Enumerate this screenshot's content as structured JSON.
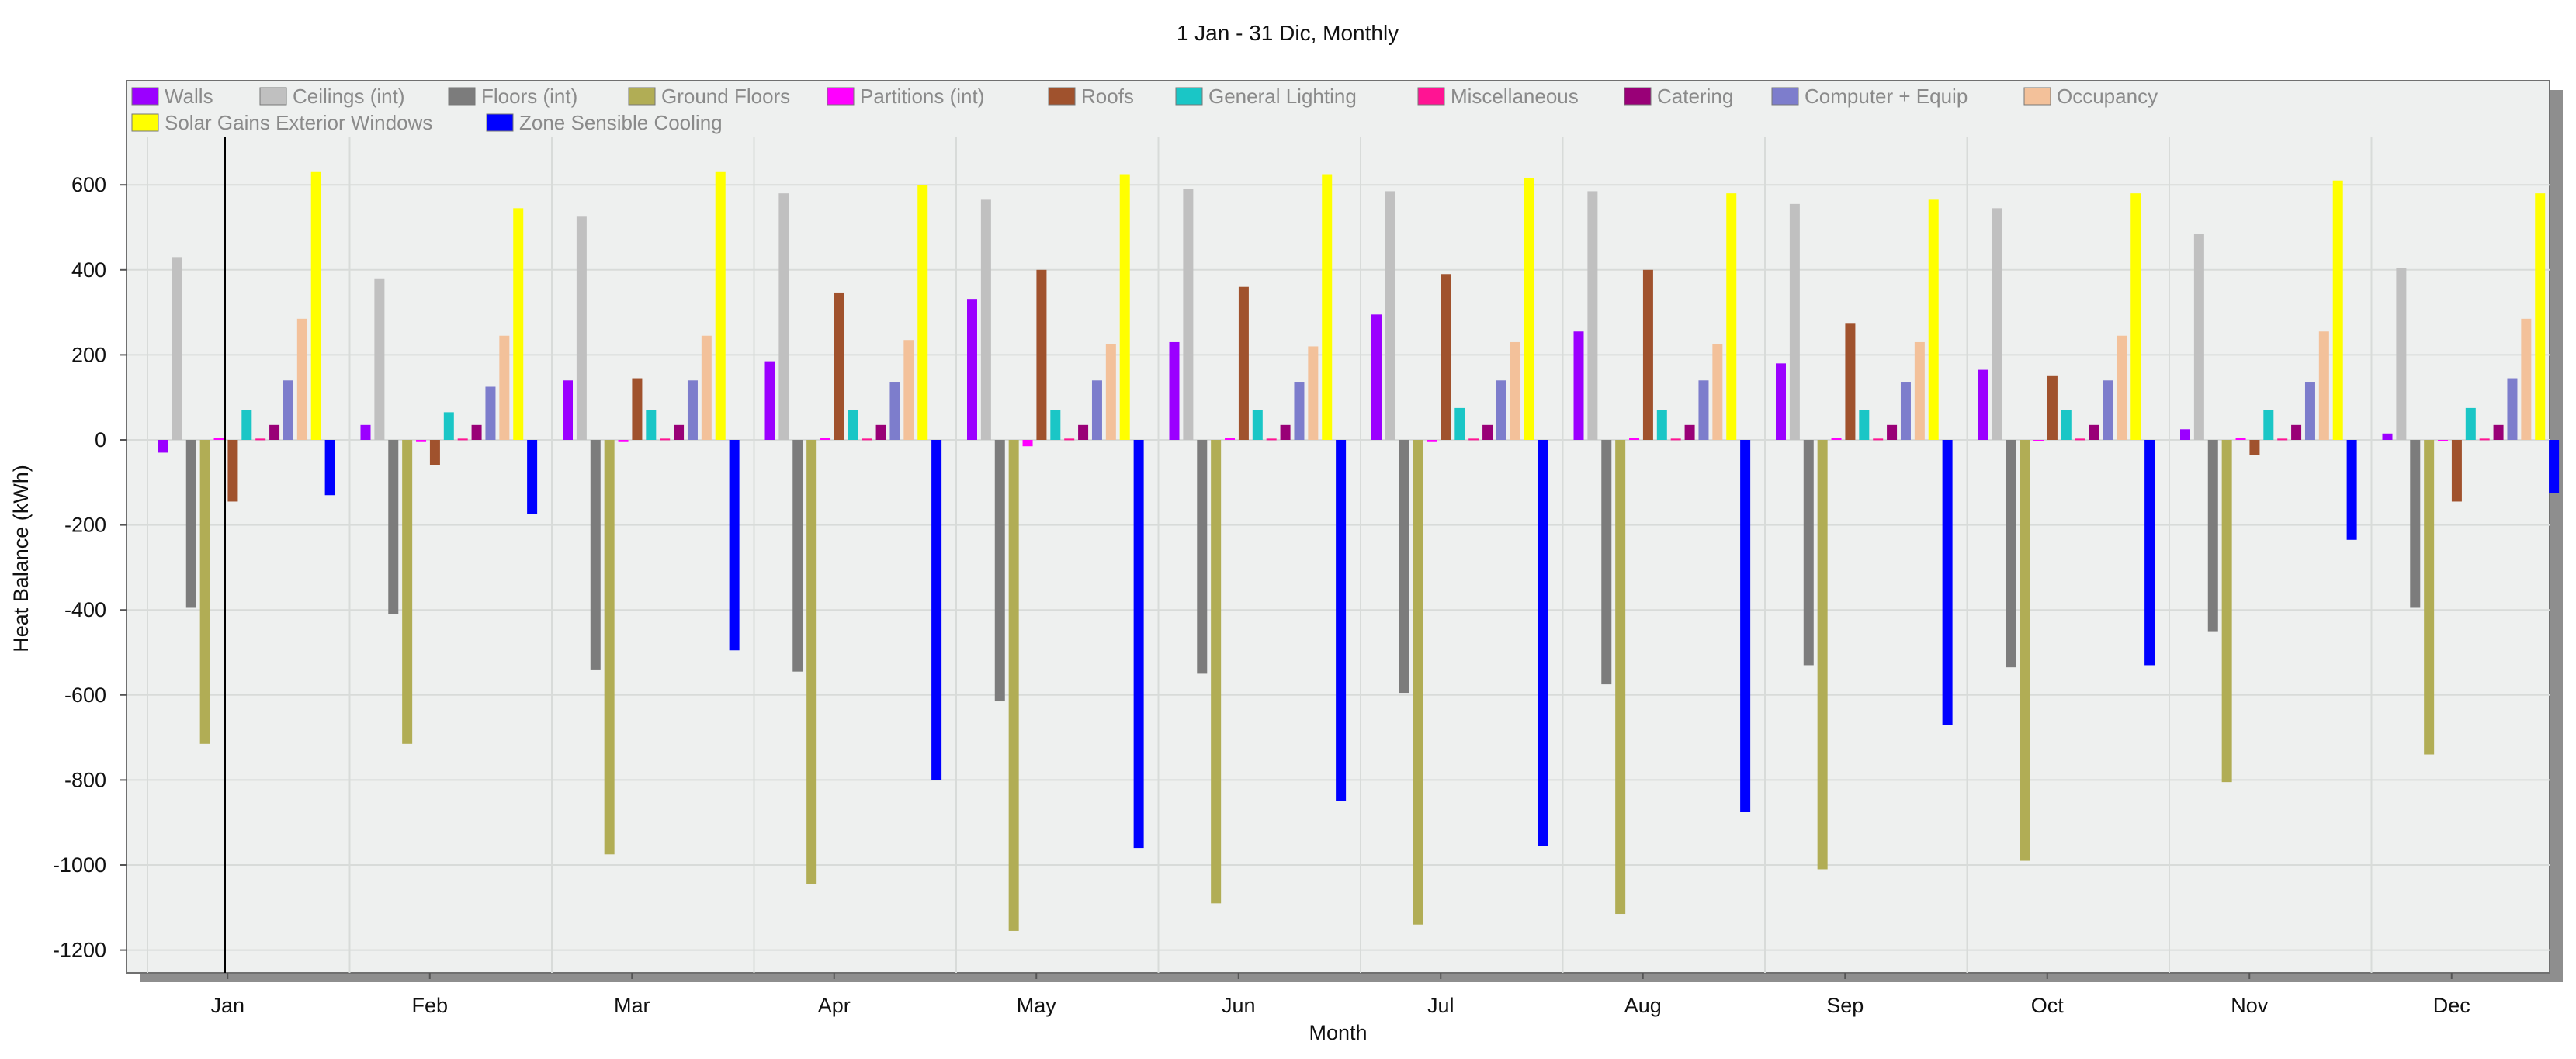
{
  "chart_data": {
    "type": "bar",
    "title": "1 Jan - 31 Dic, Monthly",
    "xlabel": "Month",
    "ylabel": "Heat Balance (kWh)",
    "ylim": [
      -1250,
      750
    ],
    "yticks": [
      600,
      400,
      200,
      0,
      -200,
      -400,
      -600,
      -800,
      -1000,
      -1200
    ],
    "grid": true,
    "legend_position": "top-left",
    "categories": [
      "Jan",
      "Feb",
      "Mar",
      "Apr",
      "May",
      "Jun",
      "Jul",
      "Aug",
      "Sep",
      "Oct",
      "Nov",
      "Dec"
    ],
    "series": [
      {
        "name": "Walls",
        "color": "#9b00ff",
        "values": [
          -30,
          35,
          140,
          185,
          330,
          230,
          295,
          255,
          180,
          165,
          25,
          15
        ]
      },
      {
        "name": "Ceilings (int)",
        "color": "#c0c0c0",
        "values": [
          430,
          380,
          525,
          580,
          565,
          590,
          585,
          585,
          555,
          545,
          485,
          405
        ]
      },
      {
        "name": "Floors (int)",
        "color": "#7c7c7c",
        "values": [
          -395,
          -410,
          -540,
          -545,
          -615,
          -550,
          -595,
          -575,
          -530,
          -535,
          -450,
          -395
        ]
      },
      {
        "name": "Ground Floors",
        "color": "#b1ad55",
        "values": [
          -715,
          -715,
          -975,
          -1045,
          -1155,
          -1090,
          -1140,
          -1115,
          -1010,
          -990,
          -805,
          -740
        ]
      },
      {
        "name": "Partitions (int)",
        "color": "#ff00ff",
        "values": [
          5,
          -5,
          -5,
          5,
          -15,
          5,
          -5,
          5,
          5,
          0,
          5,
          0
        ]
      },
      {
        "name": "Roofs",
        "color": "#a0522d",
        "values": [
          -145,
          -60,
          145,
          345,
          400,
          360,
          390,
          400,
          275,
          150,
          -35,
          -145
        ]
      },
      {
        "name": "General Lighting",
        "color": "#1ac6c6",
        "values": [
          70,
          65,
          70,
          70,
          70,
          70,
          75,
          70,
          70,
          70,
          70,
          75
        ]
      },
      {
        "name": "Miscellaneous",
        "color": "#ff1493",
        "values": [
          3,
          3,
          3,
          3,
          3,
          3,
          3,
          3,
          3,
          3,
          3,
          3
        ]
      },
      {
        "name": "Catering",
        "color": "#990077",
        "values": [
          35,
          35,
          35,
          35,
          35,
          35,
          35,
          35,
          35,
          35,
          35,
          35
        ]
      },
      {
        "name": "Computer + Equip",
        "color": "#7d7dcc",
        "values": [
          140,
          125,
          140,
          135,
          140,
          135,
          140,
          140,
          135,
          140,
          135,
          145
        ]
      },
      {
        "name": "Occupancy",
        "color": "#f3c19a",
        "values": [
          285,
          245,
          245,
          235,
          225,
          220,
          230,
          225,
          230,
          245,
          255,
          285
        ]
      },
      {
        "name": "Solar Gains Exterior Windows",
        "color": "#ffff00",
        "values": [
          630,
          545,
          630,
          600,
          625,
          625,
          615,
          580,
          565,
          580,
          610,
          580
        ]
      },
      {
        "name": "Zone Sensible Cooling",
        "color": "#0000ff",
        "values": [
          -130,
          -175,
          -495,
          -800,
          -960,
          -850,
          -955,
          -875,
          -670,
          -530,
          -235,
          -125
        ]
      }
    ]
  }
}
